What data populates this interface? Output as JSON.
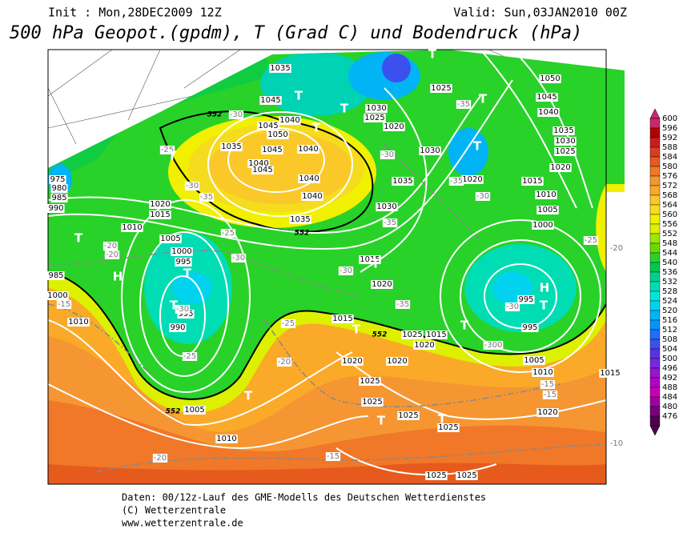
{
  "header": {
    "init": "Init : Mon,28DEC2009 12Z",
    "valid": "Valid: Sun,03JAN2010 00Z",
    "title": "500 hPa Geopot.(gpdm), T (Grad C) und Bodendruck (hPa)"
  },
  "legend": {
    "labels": [
      "600",
      "596",
      "592",
      "588",
      "584",
      "580",
      "576",
      "572",
      "568",
      "564",
      "560",
      "556",
      "552",
      "548",
      "544",
      "540",
      "536",
      "532",
      "528",
      "524",
      "520",
      "516",
      "512",
      "508",
      "504",
      "500",
      "496",
      "492",
      "488",
      "484",
      "480",
      "476"
    ],
    "colors": [
      "#c8286e",
      "#b40000",
      "#c81e1e",
      "#dc3c1e",
      "#e65a1e",
      "#f07828",
      "#f59632",
      "#faaa28",
      "#fac828",
      "#f5dc1e",
      "#f0f000",
      "#dcf000",
      "#a0e600",
      "#64dc00",
      "#28d228",
      "#00c850",
      "#00d28c",
      "#00dcb4",
      "#00e6dc",
      "#00d2f0",
      "#00b4f5",
      "#0096fa",
      "#1e6efa",
      "#3c50f0",
      "#5a32e6",
      "#7828dc",
      "#9614d2",
      "#b400c8",
      "#c800b4",
      "#a000a0",
      "#780078",
      "#500050"
    ]
  },
  "map_labels": {
    "pressure": [
      "1035",
      "1045",
      "1030",
      "1025",
      "1025",
      "1020",
      "1050",
      "1045",
      "1040",
      "1035",
      "1030",
      "1025",
      "1020",
      "1015",
      "1010",
      "1005",
      "1000",
      "1040",
      "1050",
      "1045",
      "1035",
      "1045",
      "1040",
      "1040",
      "1045",
      "1040",
      "1040",
      "1035",
      "1030",
      "1035",
      "1030",
      "1020",
      "1020",
      "1015",
      "1010",
      "1005",
      "1000",
      "995",
      "985",
      "995",
      "990",
      "1010",
      "1015",
      "1020",
      "1015",
      "1025",
      "1015",
      "1020",
      "995",
      "995",
      "1005",
      "1010",
      "1015",
      "1020",
      "1020",
      "1025",
      "1025",
      "1025",
      "1025",
      "1020",
      "1005",
      "1010",
      "1025",
      "1025",
      "975",
      "980",
      "985",
      "990",
      "1000"
    ],
    "temperature": [
      "-30",
      "-25",
      "-30",
      "-35",
      "-25",
      "-30",
      "-20",
      "-20",
      "-15",
      "-30",
      "-25",
      "-25",
      "-20",
      "-30",
      "-35",
      "-30",
      "-35",
      "-35",
      "-35",
      "-30",
      "-25",
      "-20",
      "-30",
      "-300",
      "-15",
      "-15",
      "-20",
      "-15",
      "-10"
    ],
    "symbols": [
      "T",
      "T",
      "T",
      "T",
      "T",
      "T",
      "T",
      "H",
      "T",
      "T",
      "T",
      "T",
      "T",
      "T",
      "T",
      "T",
      "T",
      "T",
      "T",
      "H"
    ],
    "contour": [
      "552",
      "552",
      "552",
      "552"
    ]
  },
  "footer": [
    "Daten: 00/12z-Lauf des GME-Modells des Deutschen Wetterdienstes",
    "(C) Wetterzentrale",
    "www.wetterzentrale.de"
  ]
}
